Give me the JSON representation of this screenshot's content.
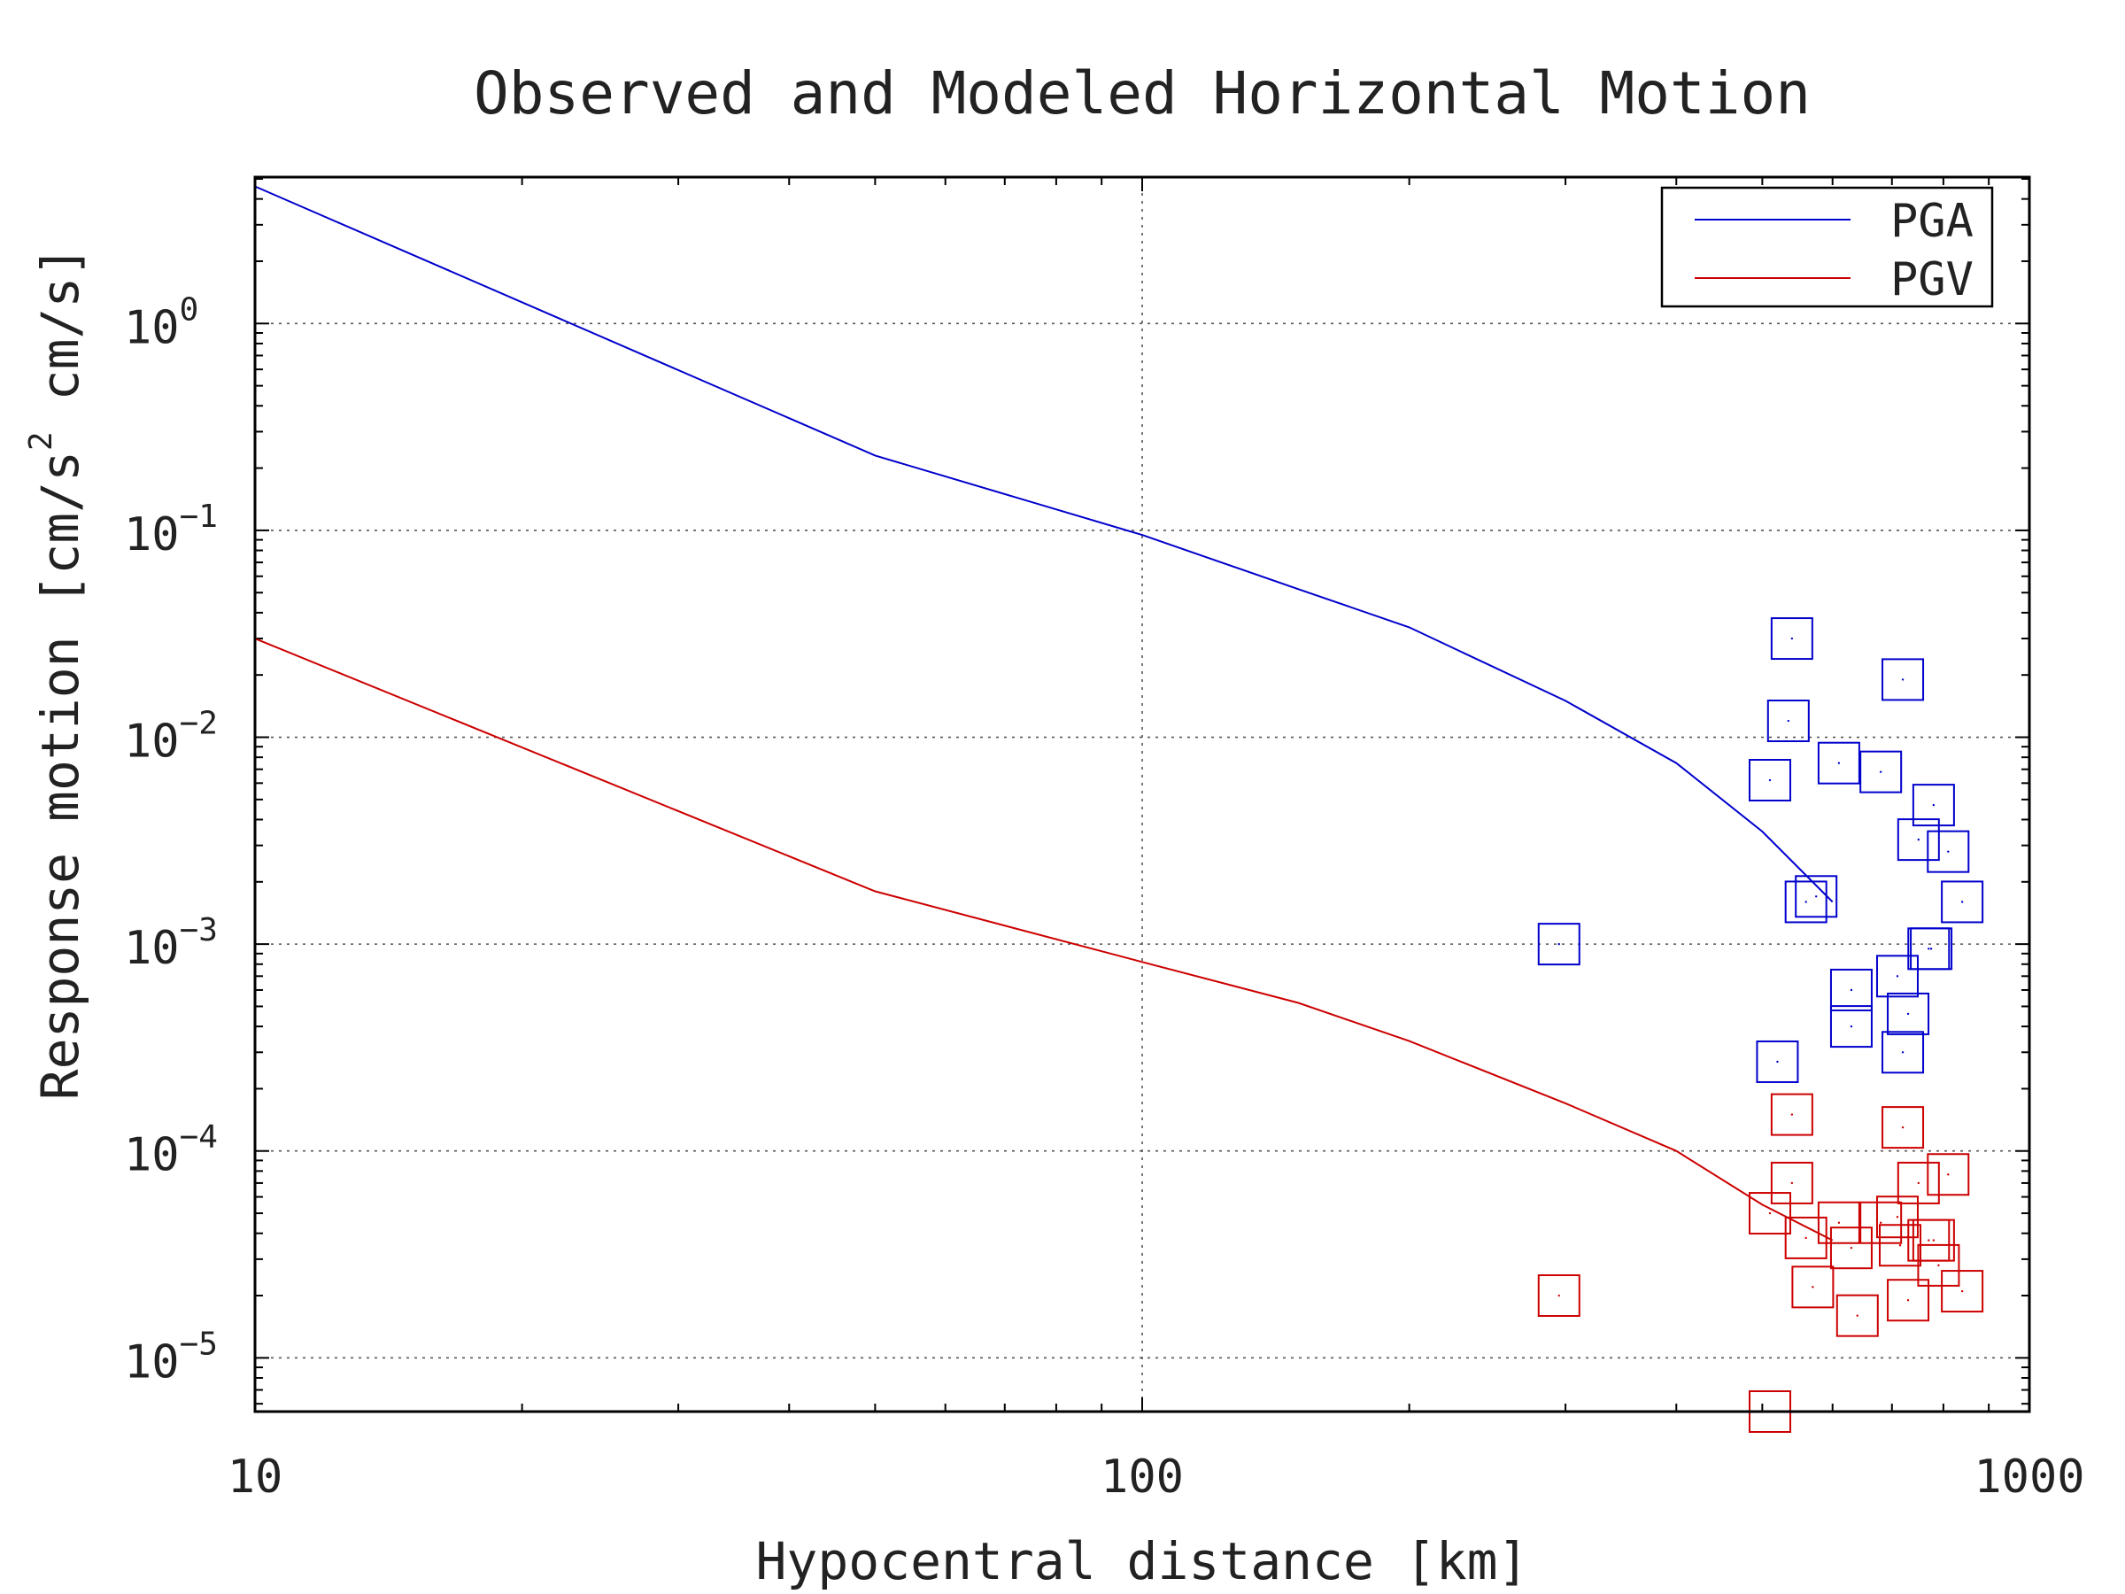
{
  "chart_data": {
    "type": "line",
    "title": "Observed and Modeled Horizontal Motion",
    "xlabel": "Hypocentral distance [km]",
    "ylabel_parts": [
      "Response motion [cm/s",
      "2",
      "  cm/s]"
    ],
    "x_scale": "log",
    "y_scale": "log",
    "xlim": [
      10,
      1000
    ],
    "ylim": [
      5.5e-06,
      5.1
    ],
    "x_ticks": [
      {
        "value": 10,
        "label": "10"
      },
      {
        "value": 100,
        "label": "100"
      },
      {
        "value": 1000,
        "label": "1000"
      }
    ],
    "y_ticks": [
      {
        "value": 1,
        "base": "10",
        "exp": "0"
      },
      {
        "value": 0.1,
        "base": "10",
        "exp": "−1"
      },
      {
        "value": 0.01,
        "base": "10",
        "exp": "−2"
      },
      {
        "value": 0.001,
        "base": "10",
        "exp": "−3"
      },
      {
        "value": 0.0001,
        "base": "10",
        "exp": "−4"
      },
      {
        "value": 1e-05,
        "base": "10",
        "exp": "−5"
      }
    ],
    "grid": true,
    "legend_position": "top-right",
    "series": [
      {
        "name": "PGA",
        "color": "#0000cc",
        "line": [
          [
            10,
            4.6
          ],
          [
            50,
            0.23
          ],
          [
            100,
            0.095
          ],
          [
            150,
            0.052
          ],
          [
            200,
            0.034
          ],
          [
            300,
            0.015
          ],
          [
            400,
            0.0075
          ],
          [
            500,
            0.0035
          ],
          [
            600,
            0.0016
          ]
        ],
        "observed": [
          [
            295,
            0.001
          ],
          [
            510,
            0.0062
          ],
          [
            540,
            0.03
          ],
          [
            535,
            0.012
          ],
          [
            560,
            0.0016
          ],
          [
            575,
            0.0017
          ],
          [
            610,
            0.0075
          ],
          [
            630,
            0.0006
          ],
          [
            630,
            0.0004
          ],
          [
            680,
            0.0068
          ],
          [
            710,
            0.0007
          ],
          [
            720,
            0.0003
          ],
          [
            720,
            0.019
          ],
          [
            730,
            0.00046
          ],
          [
            750,
            0.0032
          ],
          [
            770,
            0.00095
          ],
          [
            780,
            0.0047
          ],
          [
            810,
            0.0028
          ],
          [
            840,
            0.0016
          ],
          [
            520,
            0.00027
          ],
          [
            775,
            0.00095
          ]
        ]
      },
      {
        "name": "PGV",
        "color": "#cc0000",
        "line": [
          [
            10,
            0.03
          ],
          [
            50,
            0.0018
          ],
          [
            100,
            0.00082
          ],
          [
            150,
            0.00052
          ],
          [
            200,
            0.00034
          ],
          [
            300,
            0.00017
          ],
          [
            400,
            0.0001
          ],
          [
            500,
            5.5e-05
          ],
          [
            600,
            3.7e-05
          ]
        ],
        "observed": [
          [
            295,
            2e-05
          ],
          [
            510,
            5.5e-06
          ],
          [
            510,
            5e-05
          ],
          [
            540,
            0.00015
          ],
          [
            540,
            7e-05
          ],
          [
            560,
            3.8e-05
          ],
          [
            570,
            2.2e-05
          ],
          [
            610,
            4.5e-05
          ],
          [
            630,
            3.4e-05
          ],
          [
            640,
            1.6e-05
          ],
          [
            680,
            4.5e-05
          ],
          [
            710,
            4.8e-05
          ],
          [
            715,
            3.5e-05
          ],
          [
            720,
            0.00013
          ],
          [
            730,
            1.9e-05
          ],
          [
            750,
            7e-05
          ],
          [
            770,
            3.7e-05
          ],
          [
            780,
            3.7e-05
          ],
          [
            790,
            2.8e-05
          ],
          [
            810,
            7.7e-05
          ],
          [
            840,
            2.1e-05
          ]
        ]
      }
    ]
  }
}
